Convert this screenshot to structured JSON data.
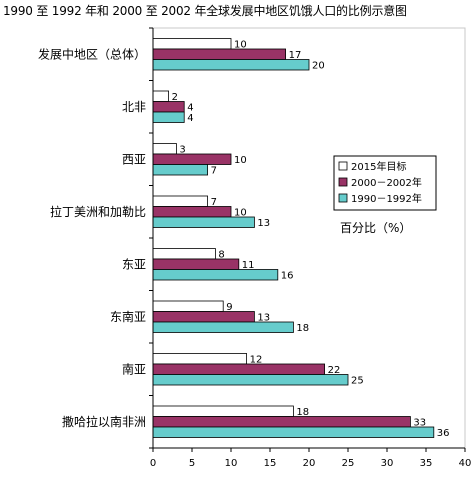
{
  "title": "1990 至 1992 年和 2000 至 2002 年全球发展中地区饥饿人口的比例示意图",
  "chart_data": {
    "type": "bar",
    "orientation": "horizontal",
    "categories": [
      "发展中地区（总体）",
      "北非",
      "西亚",
      "拉丁美洲和加勒比",
      "东亚",
      "东南亚",
      "南亚",
      "撒哈拉以南非洲"
    ],
    "series": [
      {
        "name": "2015年目标",
        "color": "#ffffff",
        "values": [
          10,
          2,
          3,
          7,
          8,
          9,
          12,
          18
        ]
      },
      {
        "name": "2000－2002年",
        "color": "#993366",
        "values": [
          17,
          4,
          10,
          10,
          11,
          13,
          22,
          33
        ]
      },
      {
        "name": "1990－1992年",
        "color": "#66cccc",
        "values": [
          20,
          4,
          7,
          13,
          16,
          18,
          25,
          36
        ]
      }
    ],
    "xlim": [
      0,
      40
    ],
    "xticks": [
      0,
      5,
      10,
      15,
      20,
      25,
      30,
      35,
      40
    ],
    "xlabel": "百分比（%）",
    "grid": false,
    "legend_position": "right-middle"
  }
}
